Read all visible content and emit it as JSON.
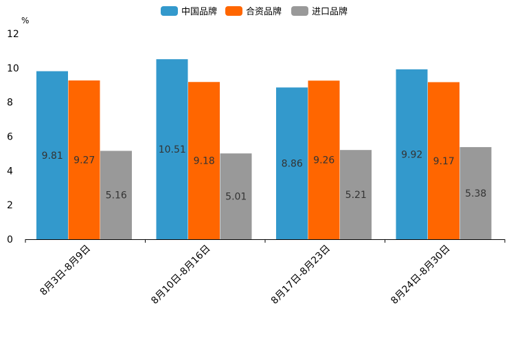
{
  "chart_data": {
    "type": "bar",
    "title": "",
    "xlabel": "",
    "ylabel": "%",
    "ylim": [
      0,
      12
    ],
    "yticks": [
      0,
      2,
      4,
      6,
      8,
      10,
      12
    ],
    "grid": false,
    "legend_position": "top-center",
    "categories": [
      "8月3日-8月9日",
      "8月10日-8月16日",
      "8月17日-8月23日",
      "8月24日-8月30日"
    ],
    "series": [
      {
        "name": "中国品牌",
        "color": "#3399cc",
        "values": [
          9.81,
          10.51,
          8.86,
          9.92
        ]
      },
      {
        "name": "合资品牌",
        "color": "#ff6600",
        "values": [
          9.27,
          9.18,
          9.26,
          9.17
        ]
      },
      {
        "name": "进口品牌",
        "color": "#999999",
        "values": [
          5.16,
          5.01,
          5.21,
          5.38
        ]
      }
    ]
  }
}
